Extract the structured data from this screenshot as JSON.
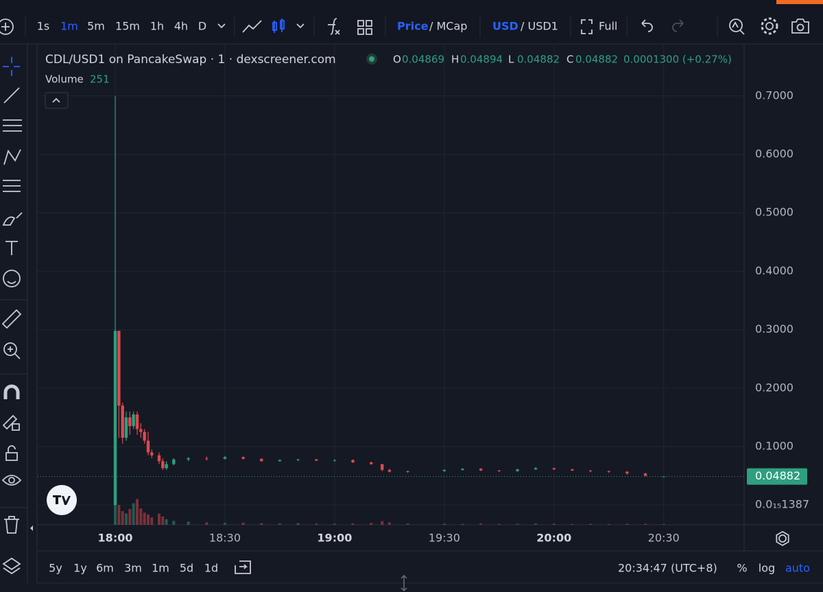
{
  "toolbar": {
    "intervals": [
      "1s",
      "1m",
      "5m",
      "15m",
      "1h",
      "4h",
      "D"
    ],
    "active_interval": 1,
    "price_mode": "Price",
    "price_alt": "/ MCap",
    "currency": "USD",
    "currency_alt": "/ USD1",
    "full": "Full"
  },
  "header": {
    "title": "CDL/USD1 on PancakeSwap · 1 · dexscreener.com",
    "ohlc": [
      {
        "key": "O",
        "value": "0.04869"
      },
      {
        "key": "H",
        "value": "0.04894"
      },
      {
        "key": "L",
        "value": "0.04882"
      },
      {
        "key": "C",
        "value": "0.04882"
      }
    ],
    "change": "0.0001300 (+0.27%)",
    "volume_label": "Volume",
    "volume_value": "251"
  },
  "chart_data": {
    "type": "candlestick",
    "x": [
      0,
      1,
      2,
      3,
      4,
      5,
      6,
      7,
      8,
      9,
      10,
      12,
      13,
      14,
      16,
      20,
      25,
      30,
      35,
      40,
      45,
      50,
      55,
      60,
      65,
      70,
      73,
      75,
      80,
      90,
      95,
      100,
      105,
      110,
      115,
      120,
      125,
      130,
      135,
      140,
      145,
      150
    ],
    "open": [
      0.0,
      0.298,
      0.17,
      0.115,
      0.15,
      0.135,
      0.155,
      0.13,
      0.125,
      0.11,
      0.09,
      0.085,
      0.075,
      0.063,
      0.07,
      0.078,
      0.08,
      0.079,
      0.082,
      0.079,
      0.075,
      0.077,
      0.078,
      0.076,
      0.077,
      0.073,
      0.07,
      0.06,
      0.057,
      0.058,
      0.06,
      0.062,
      0.059,
      0.058,
      0.061,
      0.063,
      0.061,
      0.059,
      0.058,
      0.057,
      0.054,
      0.04869
    ],
    "high": [
      0.7,
      0.298,
      0.175,
      0.16,
      0.16,
      0.16,
      0.16,
      0.14,
      0.13,
      0.125,
      0.095,
      0.09,
      0.08,
      0.075,
      0.08,
      0.082,
      0.083,
      0.084,
      0.083,
      0.08,
      0.078,
      0.079,
      0.079,
      0.078,
      0.078,
      0.074,
      0.07,
      0.062,
      0.059,
      0.061,
      0.063,
      0.063,
      0.06,
      0.062,
      0.065,
      0.064,
      0.062,
      0.06,
      0.059,
      0.058,
      0.055,
      0.04894
    ],
    "low": [
      0.0,
      0.115,
      0.105,
      0.11,
      0.12,
      0.13,
      0.12,
      0.115,
      0.105,
      0.085,
      0.08,
      0.07,
      0.06,
      0.06,
      0.068,
      0.075,
      0.076,
      0.078,
      0.078,
      0.074,
      0.074,
      0.075,
      0.075,
      0.074,
      0.072,
      0.069,
      0.058,
      0.056,
      0.055,
      0.057,
      0.059,
      0.058,
      0.057,
      0.057,
      0.06,
      0.06,
      0.058,
      0.056,
      0.055,
      0.052,
      0.049,
      0.04882
    ],
    "close": [
      0.298,
      0.17,
      0.115,
      0.15,
      0.135,
      0.155,
      0.13,
      0.125,
      0.11,
      0.09,
      0.085,
      0.075,
      0.063,
      0.07,
      0.078,
      0.08,
      0.079,
      0.082,
      0.079,
      0.075,
      0.077,
      0.078,
      0.076,
      0.077,
      0.073,
      0.07,
      0.06,
      0.057,
      0.058,
      0.06,
      0.062,
      0.059,
      0.058,
      0.061,
      0.063,
      0.061,
      0.059,
      0.058,
      0.057,
      0.054,
      0.05,
      0.04882
    ],
    "volume": [
      12000,
      7500,
      5200,
      4300,
      6000,
      8200,
      9800,
      6200,
      4600,
      3900,
      2800,
      4300,
      3200,
      2100,
      1500,
      1200,
      900,
      700,
      800,
      600,
      500,
      650,
      450,
      400,
      500,
      700,
      1400,
      900,
      450,
      400,
      350,
      500,
      300,
      350,
      450,
      400,
      300,
      350,
      300,
      400,
      350,
      251
    ],
    "up_color": "#2e9f7f",
    "down_color": "#e0484f",
    "xlim": [
      -21.2,
      172
    ],
    "xticks": [
      {
        "value": 0,
        "label": "18:00"
      },
      {
        "value": 30,
        "label": "18:30"
      },
      {
        "value": 60,
        "label": "19:00"
      },
      {
        "value": 90,
        "label": "19:30"
      },
      {
        "value": 120,
        "label": "20:00"
      },
      {
        "value": 150,
        "label": "20:30"
      }
    ],
    "ylim": [
      -0.0338,
      0.7878
    ],
    "yticks": [
      {
        "value": 1.387e-15,
        "label": "0.0₁₅1387"
      },
      {
        "value": 0.1,
        "label": "0.1000"
      },
      {
        "value": 0.2,
        "label": "0.2000"
      },
      {
        "value": 0.3,
        "label": "0.3000"
      },
      {
        "value": 0.4,
        "label": "0.4000"
      },
      {
        "value": 0.5,
        "label": "0.5000"
      },
      {
        "value": 0.6,
        "label": "0.6000"
      },
      {
        "value": 0.7,
        "label": "0.7000"
      }
    ],
    "grid": true,
    "last_price": {
      "value": 0.04882,
      "label": "0.04882"
    }
  },
  "bottom": {
    "ranges": [
      "5y",
      "1y",
      "6m",
      "3m",
      "1m",
      "5d",
      "1d"
    ],
    "clock": "20:34:47 (UTC+8)",
    "options": [
      "%",
      "log",
      "auto"
    ]
  }
}
